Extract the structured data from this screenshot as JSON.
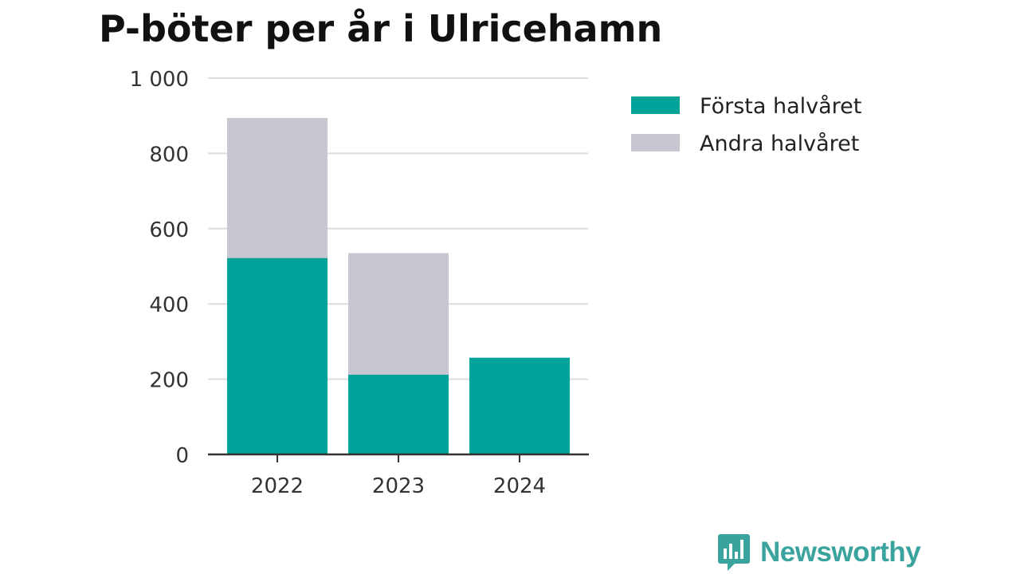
{
  "chart_data": {
    "type": "bar",
    "stacked": true,
    "title": "P-böter per år i Ulricehamn",
    "categories": [
      "2022",
      "2023",
      "2024"
    ],
    "series": [
      {
        "name": "Första halvåret",
        "color": "#00a39a",
        "values": [
          522,
          212,
          257
        ]
      },
      {
        "name": "Andra halvåret",
        "color": "#c7c6d1",
        "values": [
          372,
          323,
          0
        ]
      }
    ],
    "ylim": [
      0,
      1000
    ],
    "yticks": [
      0,
      200,
      400,
      600,
      800,
      1000
    ],
    "ytick_labels": [
      "0",
      "200",
      "400",
      "600",
      "800",
      "1 000"
    ],
    "grid": true,
    "legend": "top-right"
  },
  "branding": {
    "name": "Newsworthy",
    "icon": "newsworthy-logo-icon",
    "color": "#3aa39d"
  }
}
